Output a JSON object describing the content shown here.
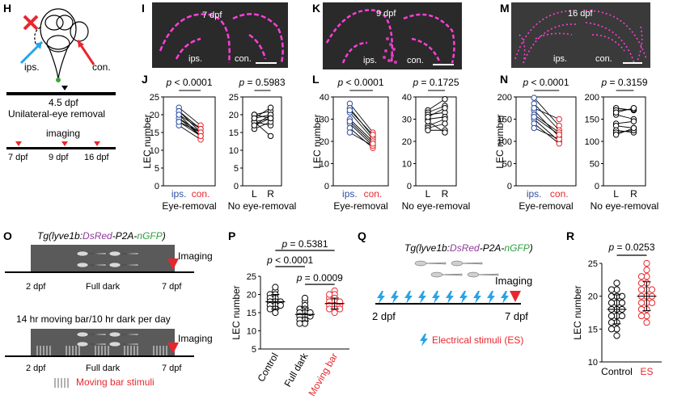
{
  "panels": {
    "H": {
      "letter": "H",
      "ips": "ips.",
      "con": "con.",
      "timepoint": "4.5 dpf",
      "procedure": "Unilateral-eye removal",
      "imaging": "imaging",
      "times": [
        "7 dpf",
        "9 dpf",
        "16 dpf"
      ]
    },
    "I": {
      "letter": "I",
      "age": "7 dpf",
      "ips": "ips.",
      "con": "con."
    },
    "K": {
      "letter": "K",
      "age": "9 dpf",
      "ips": "ips.",
      "con": "con."
    },
    "M": {
      "letter": "M",
      "age": "16 dpf",
      "ips": "ips.",
      "con": "con."
    },
    "O": {
      "letter": "O",
      "genotype": {
        "pre": "Tg(lyve1b:",
        "red": "DsRed",
        "mid": "-P2A-",
        "green": "nGFP",
        "post": ")"
      },
      "imaging1": "Imaging",
      "start1": "2 dpf",
      "condition1": "Full dark",
      "end1": "7 dpf",
      "protocol": "14 hr moving bar/10 hr dark per day",
      "imaging2": "Imaging",
      "start2": "2 dpf",
      "condition2": "Full dark",
      "end2": "7 dpf",
      "legend": "Moving bar stimuli"
    },
    "Q": {
      "letter": "Q",
      "genotype": {
        "pre": "Tg(lyve1b:",
        "red": "DsRed",
        "mid": "-P2A-",
        "green": "nGFP",
        "post": ")"
      },
      "imaging": "Imaging",
      "start": "2 dpf",
      "end": "7 dpf",
      "legend": "Electrical stimuli (ES)"
    }
  },
  "chart_data": [
    {
      "id": "J-left",
      "letter": "J",
      "type": "scatter",
      "ylabel": "LEC number",
      "ylim": [
        0,
        25
      ],
      "yticks": [
        0,
        5,
        10,
        15,
        20,
        25
      ],
      "categories": [
        "ips.",
        "con."
      ],
      "group_label": "Eye-removal",
      "pvalue": "p < 0.0001",
      "pairs": [
        [
          22,
          17
        ],
        [
          21,
          15
        ],
        [
          20,
          16
        ],
        [
          19,
          14
        ],
        [
          19,
          15
        ],
        [
          18,
          14
        ],
        [
          17,
          13
        ],
        [
          21,
          16
        ],
        [
          18,
          15
        ],
        [
          20,
          14
        ]
      ]
    },
    {
      "id": "J-right",
      "type": "scatter",
      "ylim": [
        0,
        25
      ],
      "yticks": [
        0,
        5,
        10,
        15,
        20,
        25
      ],
      "categories": [
        "L",
        "R"
      ],
      "group_label": "No eye-removal",
      "pvalue": "p = 0.5983",
      "pairs": [
        [
          20,
          21
        ],
        [
          19,
          20
        ],
        [
          18,
          19
        ],
        [
          17,
          20
        ],
        [
          18,
          17
        ],
        [
          16,
          18
        ],
        [
          20,
          19
        ],
        [
          18,
          14
        ],
        [
          19,
          22
        ],
        [
          17,
          19
        ]
      ]
    },
    {
      "id": "L-left",
      "letter": "L",
      "type": "scatter",
      "ylabel": "LEC number",
      "ylim": [
        0,
        40
      ],
      "yticks": [
        0,
        10,
        20,
        30,
        40
      ],
      "categories": [
        "ips.",
        "con."
      ],
      "group_label": "Eye-removal",
      "pvalue": "p < 0.0001",
      "pairs": [
        [
          37,
          24
        ],
        [
          35,
          22
        ],
        [
          33,
          21
        ],
        [
          30,
          20
        ],
        [
          28,
          18
        ],
        [
          26,
          17
        ],
        [
          24,
          18
        ],
        [
          34,
          23
        ],
        [
          29,
          19
        ]
      ]
    },
    {
      "id": "L-right",
      "type": "scatter",
      "ylim": [
        0,
        40
      ],
      "yticks": [
        0,
        10,
        20,
        30,
        40
      ],
      "categories": [
        "L",
        "R"
      ],
      "group_label": "No eye-removal",
      "pvalue": "p = 0.1725",
      "pairs": [
        [
          34,
          39
        ],
        [
          33,
          36
        ],
        [
          32,
          33
        ],
        [
          30,
          31
        ],
        [
          27,
          30
        ],
        [
          26,
          28
        ],
        [
          25,
          25
        ],
        [
          29,
          24
        ],
        [
          31,
          35
        ]
      ]
    },
    {
      "id": "N-left",
      "letter": "N",
      "type": "scatter",
      "ylabel": "LEC number",
      "ylim": [
        0,
        200
      ],
      "yticks": [
        0,
        50,
        100,
        150,
        200
      ],
      "categories": [
        "ips.",
        "con."
      ],
      "group_label": "Eye-removal",
      "pvalue": "p < 0.0001",
      "pairs": [
        [
          198,
          135
        ],
        [
          185,
          125
        ],
        [
          170,
          110
        ],
        [
          160,
          120
        ],
        [
          150,
          100
        ],
        [
          140,
          95
        ],
        [
          130,
          105
        ],
        [
          175,
          150
        ],
        [
          155,
          115
        ]
      ]
    },
    {
      "id": "N-right",
      "type": "scatter",
      "ylim": [
        0,
        200
      ],
      "yticks": [
        0,
        50,
        100,
        150,
        200
      ],
      "categories": [
        "L",
        "R"
      ],
      "group_label": "No eye-removal",
      "pvalue": "p = 0.3159",
      "pairs": [
        [
          175,
          170
        ],
        [
          170,
          172
        ],
        [
          160,
          150
        ],
        [
          140,
          145
        ],
        [
          135,
          130
        ],
        [
          125,
          120
        ],
        [
          120,
          125
        ],
        [
          115,
          130
        ],
        [
          165,
          175
        ]
      ]
    },
    {
      "id": "P",
      "letter": "P",
      "type": "scatter",
      "ylabel": "LEC number",
      "ylim": [
        5,
        25
      ],
      "yticks": [
        5,
        10,
        15,
        20,
        25
      ],
      "categories": [
        "Control",
        "Full dark",
        "Moving bar"
      ],
      "comparisons": [
        {
          "from": 0,
          "to": 2,
          "p": "p = 0.5381"
        },
        {
          "from": 0,
          "to": 1,
          "p": "p < 0.0001"
        },
        {
          "from": 1,
          "to": 2,
          "p": "p = 0.0009"
        }
      ],
      "groups": [
        {
          "name": "Control",
          "mean": 18,
          "sd": 2,
          "values": [
            21,
            20,
            20,
            19,
            19,
            18,
            18,
            18,
            17,
            17,
            17,
            16,
            16,
            15,
            22
          ]
        },
        {
          "name": "Full dark",
          "mean": 14.5,
          "sd": 1.8,
          "values": [
            18,
            17,
            16,
            16,
            15,
            15,
            14,
            14,
            14,
            13,
            13,
            12,
            12,
            15,
            19
          ]
        },
        {
          "name": "Moving bar",
          "mean": 17.5,
          "sd": 1.5,
          "values": [
            21,
            20,
            19,
            19,
            18,
            18,
            17,
            17,
            17,
            16,
            16,
            15,
            18,
            16,
            20
          ]
        }
      ]
    },
    {
      "id": "R",
      "letter": "R",
      "type": "scatter",
      "ylabel": "LEC number",
      "ylim": [
        10,
        25
      ],
      "yticks": [
        10,
        15,
        20,
        25
      ],
      "categories": [
        "Control",
        "ES"
      ],
      "comparisons": [
        {
          "from": 0,
          "to": 1,
          "p": "p = 0.0253"
        }
      ],
      "groups": [
        {
          "name": "Control",
          "mean": 18,
          "sd": 2.2,
          "values": [
            22,
            21,
            21,
            20,
            20,
            19,
            19,
            18,
            18,
            18,
            17,
            17,
            17,
            16,
            16,
            15,
            15,
            14,
            19,
            20
          ]
        },
        {
          "name": "ES",
          "mean": 20,
          "sd": 2.2,
          "values": [
            25,
            24,
            23,
            22,
            22,
            21,
            21,
            20,
            20,
            20,
            19,
            19,
            18,
            18,
            17,
            17,
            16,
            23,
            21,
            19
          ]
        }
      ]
    }
  ],
  "colors": {
    "ips": "#2e4fa3",
    "con": "#e8272d",
    "black": "#000000",
    "red_text": "#e8272d",
    "green_text": "#2e9e3e",
    "magenta_text": "#8e3a97",
    "blue_bolt": "#2aa3e6",
    "lymph": "#ff3fd8"
  }
}
